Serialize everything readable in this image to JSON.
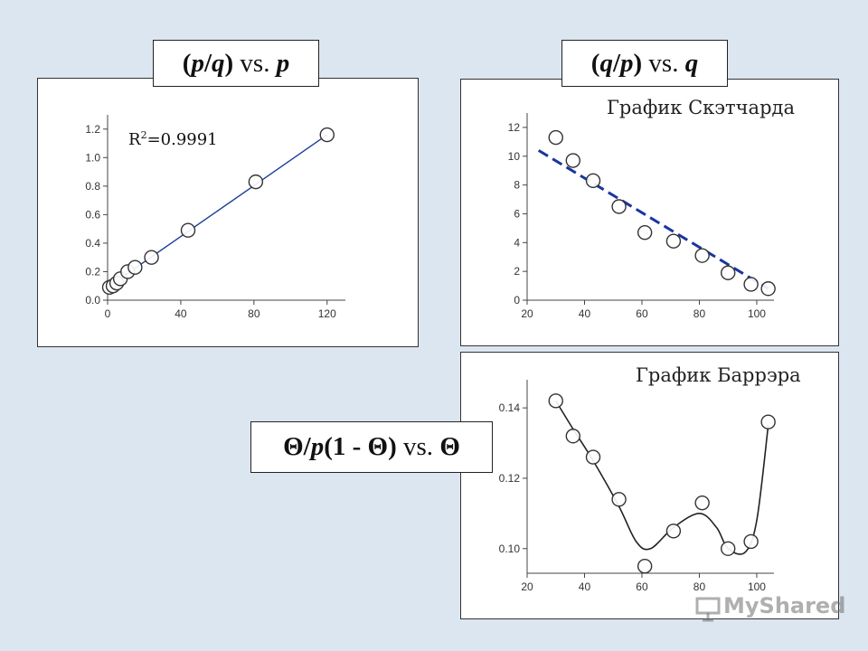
{
  "labels": {
    "p_over_q": {
      "open": "(",
      "a": "p",
      "slash": "/",
      "b": "q",
      "close": ")",
      "vs": " vs. ",
      "c": "p"
    },
    "q_over_p": {
      "open": "(",
      "a": "q",
      "slash": "/",
      "b": "p",
      "close": ")",
      "vs": " vs. ",
      "c": "q"
    },
    "theta": {
      "t1": "Θ/",
      "p": "p",
      "rest": "(1 - Θ)",
      "vs": " vs. ",
      "t2": "Θ"
    }
  },
  "captions": {
    "scatchard": "График Скэтчарда",
    "barrer": "График Баррэра"
  },
  "r2": {
    "base": "R",
    "sup": "2",
    "rest": "=0.9991"
  },
  "watermark": "MyShared",
  "colors": {
    "fit_line": "#1f3f99",
    "dashed": "#1a35a0",
    "markers": "#333333",
    "page": "#dce6f1"
  },
  "chart_data": [
    {
      "type": "scatter",
      "title": "",
      "xlim": [
        0,
        130
      ],
      "ylim": [
        0,
        1.3
      ],
      "xticks": [
        "0",
        "40",
        "80",
        "120"
      ],
      "yticks": [
        "0.0",
        "0.2",
        "0.4",
        "0.6",
        "0.8",
        "1.0",
        "1.2"
      ],
      "x": [
        1,
        3,
        5,
        7,
        11,
        15,
        24,
        44,
        81,
        120
      ],
      "y": [
        0.09,
        0.1,
        0.12,
        0.15,
        0.2,
        0.23,
        0.3,
        0.49,
        0.83,
        1.16
      ],
      "fit": {
        "x": [
          0,
          120
        ],
        "y": [
          0.09,
          1.16
        ]
      },
      "annotation": "R2=0.9991"
    },
    {
      "type": "scatter",
      "title": "График Скэтчарда",
      "xlim": [
        20,
        106
      ],
      "ylim": [
        0,
        13
      ],
      "xticks": [
        "20",
        "40",
        "60",
        "80",
        "100"
      ],
      "yticks": [
        "0",
        "2",
        "4",
        "6",
        "8",
        "10",
        "12"
      ],
      "x": [
        30,
        36,
        43,
        52,
        61,
        71,
        81,
        90,
        98,
        104
      ],
      "y": [
        11.3,
        9.7,
        8.3,
        6.5,
        4.7,
        4.1,
        3.1,
        1.9,
        1.1,
        0.8
      ],
      "fit": {
        "x": [
          24,
          104
        ],
        "y": [
          10.4,
          0.8
        ],
        "style": "dashed"
      }
    },
    {
      "type": "line",
      "title": "График Баррэра",
      "xlim": [
        20,
        106
      ],
      "ylim": [
        0.093,
        0.148
      ],
      "xticks": [
        "20",
        "40",
        "60",
        "80",
        "100"
      ],
      "yticks": [
        "0.10",
        "0.12",
        "0.14"
      ],
      "x": [
        30,
        36,
        43,
        52,
        61,
        71,
        81,
        90,
        98,
        104
      ],
      "y": [
        0.142,
        0.132,
        0.126,
        0.114,
        0.095,
        0.105,
        0.113,
        0.1,
        0.102,
        0.136
      ],
      "smooth": {
        "x": [
          30,
          36,
          43,
          52,
          58,
          63,
          71,
          80,
          86,
          90,
          96,
          100,
          104
        ],
        "y": [
          0.142,
          0.134,
          0.125,
          0.112,
          0.102,
          0.1,
          0.106,
          0.11,
          0.106,
          0.1,
          0.099,
          0.108,
          0.135
        ]
      }
    }
  ]
}
